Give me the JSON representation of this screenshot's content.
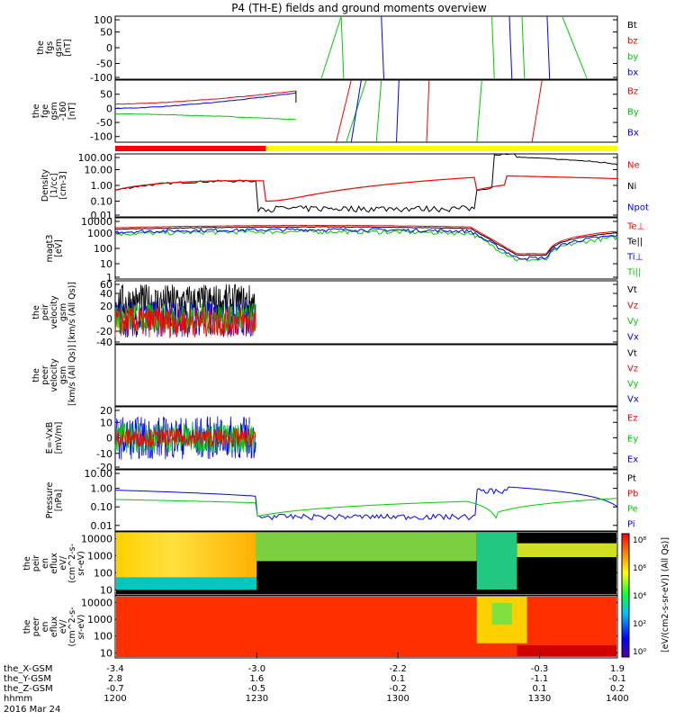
{
  "title": "P4 (TH-E) fields and ground moments overview",
  "colors": {
    "black": "#000000",
    "red": "#ff0000",
    "green": "#00cc00",
    "blue": "#0000ff",
    "yellow": "#ffff00"
  },
  "chart_data": [
    {
      "type": "line",
      "panel": "fgs",
      "ylabel": [
        "the",
        "fgs",
        "gsm",
        "[nT]"
      ],
      "ylim": [
        -100,
        100
      ],
      "yticks": [
        "100",
        "50",
        "0",
        "-50",
        "-100"
      ],
      "series": [
        {
          "name": "Bt",
          "color": "#000000"
        },
        {
          "name": "bz",
          "color": "#ff0000"
        },
        {
          "name": "by",
          "color": "#00cc00"
        },
        {
          "name": "bx",
          "color": "#0000ff"
        }
      ]
    },
    {
      "type": "line",
      "panel": "fge",
      "ylabel": [
        "the",
        "fge",
        "gsm",
        "-160",
        "[nT]"
      ],
      "ylim": [
        -120,
        100
      ],
      "yticks": [
        "50",
        "0",
        "-50",
        "-100"
      ],
      "series": [
        {
          "name": "Bz",
          "color": "#ff0000",
          "values_start": 15,
          "values_end": 62
        },
        {
          "name": "By",
          "color": "#00cc00",
          "values_start": -20,
          "values_end": -40
        },
        {
          "name": "Bx",
          "color": "#0000ff",
          "values_start": 0,
          "values_end": 55
        }
      ]
    },
    {
      "type": "line",
      "panel": "density",
      "ylabel": [
        "Density",
        "[1/cc]",
        "[cm-3]"
      ],
      "scale": "log",
      "ylim": [
        0.01,
        100
      ],
      "yticks": [
        "100.00",
        "10.00",
        "1.00",
        "0.10",
        "0.01"
      ],
      "series": [
        {
          "name": "Ne",
          "color": "#ff0000"
        },
        {
          "name": "Ni",
          "color": "#000000"
        },
        {
          "name": "Npot",
          "color": "#0000ff"
        }
      ]
    },
    {
      "type": "line",
      "panel": "temperature",
      "ylabel": [
        "magt3",
        "[eV]"
      ],
      "scale": "log",
      "ylim": [
        1,
        10000
      ],
      "yticks": [
        "10000",
        "1000",
        "100",
        "10",
        "1"
      ],
      "series": [
        {
          "name": "Te⊥",
          "color": "#ff0000"
        },
        {
          "name": "Te||",
          "color": "#000000"
        },
        {
          "name": "Ti⊥",
          "color": "#0000ff"
        },
        {
          "name": "Ti||",
          "color": "#00cc00"
        }
      ]
    },
    {
      "type": "line",
      "panel": "ion-velocity",
      "ylabel": [
        "the",
        "peir",
        "velocity",
        "gsm",
        "[km/s (All Qs)]"
      ],
      "ylim": [
        -40,
        60
      ],
      "yticks": [
        "60",
        "40",
        "20",
        "0",
        "-20",
        "-40"
      ],
      "series": [
        {
          "name": "Vt",
          "color": "#000000"
        },
        {
          "name": "Vz",
          "color": "#ff0000"
        },
        {
          "name": "Vy",
          "color": "#00cc00"
        },
        {
          "name": "Vx",
          "color": "#0000ff"
        }
      ]
    },
    {
      "type": "line",
      "panel": "electron-velocity",
      "ylabel": [
        "the",
        "peer",
        "velocity",
        "gsm",
        "[km/s (All Qs)]"
      ],
      "ylim": [
        -40,
        60
      ],
      "yticks": [],
      "series": [
        {
          "name": "Vt",
          "color": "#000000"
        },
        {
          "name": "Vz",
          "color": "#ff0000"
        },
        {
          "name": "Vy",
          "color": "#00cc00"
        },
        {
          "name": "Vx",
          "color": "#0000ff"
        }
      ]
    },
    {
      "type": "line",
      "panel": "efield",
      "ylabel": [
        "E=-VxB",
        "[mV/m]"
      ],
      "ylim": [
        -20,
        20
      ],
      "yticks": [
        "20",
        "10",
        "0",
        "-10",
        "-20"
      ],
      "series": [
        {
          "name": "Ez",
          "color": "#ff0000"
        },
        {
          "name": "Ey",
          "color": "#00cc00"
        },
        {
          "name": "Ex",
          "color": "#0000ff"
        }
      ]
    },
    {
      "type": "line",
      "panel": "pressure",
      "ylabel": [
        "Pressure",
        "[nPa]"
      ],
      "scale": "log",
      "ylim": [
        0.005,
        10
      ],
      "yticks": [
        "10.00",
        "1.00",
        "0.10",
        "0.01"
      ],
      "series": [
        {
          "name": "Pt",
          "color": "#000000"
        },
        {
          "name": "Pb",
          "color": "#ff0000"
        },
        {
          "name": "Pe",
          "color": "#00cc00"
        },
        {
          "name": "Pi",
          "color": "#0000ff"
        }
      ]
    },
    {
      "type": "heatmap",
      "panel": "ion-spectrogram",
      "ylabel": [
        "the",
        "peir",
        "en",
        "eflux",
        "eV/",
        "(cm^2-s-",
        "sr-eV)"
      ],
      "scale": "log",
      "ylim": [
        5,
        25000
      ],
      "yticks": [
        "10000",
        "1000",
        "100",
        "10"
      ]
    },
    {
      "type": "heatmap",
      "panel": "electron-spectrogram",
      "ylabel": [
        "the",
        "peer",
        "en",
        "eflux",
        "eV/",
        "(cm^2-s-",
        "sr-eV)"
      ],
      "scale": "log",
      "ylim": [
        5,
        25000
      ],
      "yticks": [
        "10000",
        "1000",
        "100",
        "10"
      ]
    }
  ],
  "colorbar": {
    "ticks": [
      "10⁸",
      "10⁶",
      "10⁴",
      "10²",
      "10⁰"
    ],
    "label": "[eV/(cm2-s-sr-eV)] (All Qs)]"
  },
  "x_axis": {
    "tick_times": [
      "1200",
      "1230",
      "1300",
      "1330",
      "1400"
    ],
    "rows": [
      {
        "label": "the_X-GSM",
        "values": [
          "-3.4",
          "-3.0",
          "-2.2",
          "-0.3",
          "1.9"
        ]
      },
      {
        "label": "the_Y-GSM",
        "values": [
          "2.8",
          "1.6",
          "0.1",
          "-1.1",
          "-0.1"
        ]
      },
      {
        "label": "the_Z-GSM",
        "values": [
          "-0.7",
          "-0.5",
          "-0.2",
          "0.1",
          "0.2"
        ]
      },
      {
        "label": "hhmm",
        "values": [
          "1200",
          "1230",
          "1300",
          "1330",
          "1400"
        ]
      }
    ],
    "date": "2016 Mar 24"
  }
}
